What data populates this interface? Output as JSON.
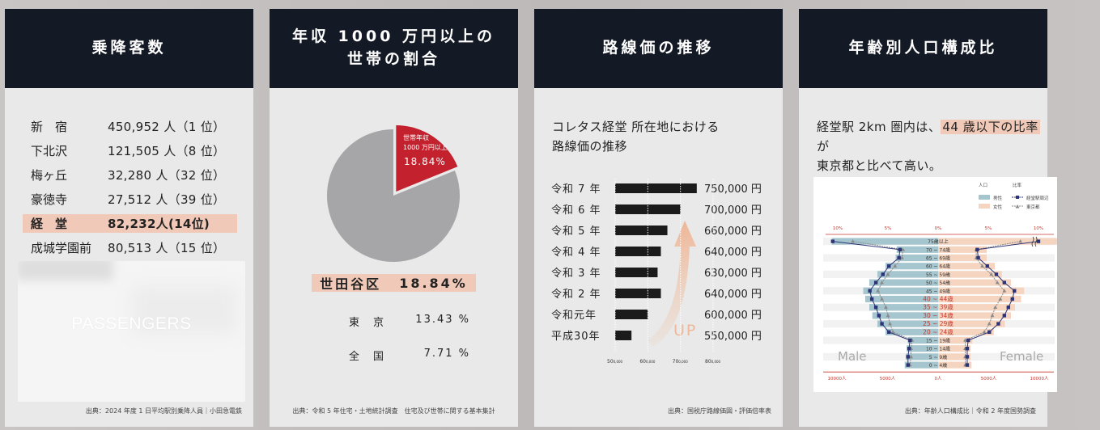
{
  "card1": {
    "title": "乗降客数",
    "rows": [
      {
        "station": "新　宿",
        "value": "450,952 人（1 位）",
        "highlight": false
      },
      {
        "station": "下北沢",
        "value": "121,505 人（8 位）",
        "highlight": false
      },
      {
        "station": "梅ヶ丘",
        "value": "32,280 人（32 位）",
        "highlight": false
      },
      {
        "station": "豪徳寺",
        "value": "27,512 人（39 位）",
        "highlight": false
      },
      {
        "station": "経　堂",
        "value": "82,232人(14位)",
        "highlight": true
      },
      {
        "station": "成城学園前",
        "value": "80,513 人（15 位）",
        "highlight": false
      }
    ],
    "photo_text": "PASSENGERS",
    "source": "出典：2024 年度 1 日平均駅別乗降人員｜小田急電鉄"
  },
  "card2": {
    "title_line1": "年収 1000 万円以上の",
    "title_line2": "世帯の割合",
    "pie_label_line1": "世帯年収",
    "pie_label_line2": "1000 万円以上",
    "pie_label_value": "18.84%",
    "highlight_area": "世田谷区",
    "highlight_value": "18.84%",
    "compare": [
      {
        "area": "東　京",
        "value": "13.43 %"
      },
      {
        "area": "全　国",
        "value": "7.71 %"
      }
    ],
    "source": "出典：令和 5 年住宅・土地統計調査　住宅及び世帯に関する基本集計",
    "colors": {
      "slice": "#c3212e",
      "rest": "#a6a5a7"
    }
  },
  "card3": {
    "title": "路線価の推移",
    "intro_line1": "コレタス経堂 所在地における",
    "intro_line2": "路線価の推移",
    "up_label": "UP",
    "source": "出典：国税庁路線価図・評価倍率表"
  },
  "card4": {
    "title": "年齢別人口構成比",
    "intro_pre": "経堂駅 2km 圏内は、",
    "intro_hl": "44 歳以下の比率",
    "intro_post": "が",
    "intro_line2": "東京都と比べて高い。",
    "source": "出典：年齢人口構成比｜令和 2 年度国勢調査"
  },
  "chart_data": [
    {
      "type": "pie",
      "title": "年収 1000 万円以上の世帯の割合",
      "slices": [
        {
          "label": "世帯年収 1000 万円以上",
          "value": 18.84
        },
        {
          "label": "",
          "value": 81.16
        }
      ]
    },
    {
      "type": "bar",
      "title": "路線価の推移",
      "categories": [
        "令和 7 年",
        "令和 6 年",
        "令和 5 年",
        "令和 4 年",
        "令和 3 年",
        "令和 2 年",
        "令和元年",
        "平成30年"
      ],
      "values": [
        750000,
        700000,
        660000,
        640000,
        630000,
        640000,
        600000,
        550000
      ],
      "value_labels": [
        "750,000 円",
        "700,000 円",
        "660,000 円",
        "640,000 円",
        "630,000 円",
        "640,000 円",
        "600,000 円",
        "550,000 円"
      ],
      "x_ticks": [
        "50",
        "60",
        "70",
        "80"
      ],
      "x_tick_unit": "0,000",
      "xlim": [
        500000,
        800000
      ],
      "color": "#1b1b1b"
    },
    {
      "type": "bar",
      "title": "年齢別人口構成比",
      "legend_titles": [
        "人口",
        "比率"
      ],
      "legend": [
        "男性",
        "女性",
        "経堂駅周辺",
        "東京都"
      ],
      "side_labels": [
        "Male",
        "Female"
      ],
      "top_ticks": [
        "10%",
        "5%",
        "0%",
        "5%",
        "10%",
        "15%"
      ],
      "bottom_ticks": [
        "10000人",
        "5000人",
        "0人",
        "5000人",
        "10000人"
      ],
      "age_groups": [
        "75歳以上",
        "70 ~ 74歳",
        "65 ~ 69歳",
        "60 ~ 64歳",
        "55 ~ 59歳",
        "50 ~ 54歳",
        "45 ~ 49歳",
        "40 ~ 44歳",
        "35 ~ 39歳",
        "30 ~ 34歳",
        "25 ~ 29歳",
        "20 ~ 24歳",
        "15 ~ 19歳",
        "10 ~ 14歳",
        "5 ~ 9歳",
        "0 ~ 4歳"
      ],
      "highlight_groups": [
        "40 ~ 44歳",
        "35 ~ 39歳",
        "30 ~ 34歳",
        "25 ~ 29歳",
        "20 ~ 24歳"
      ],
      "male_population": [
        10500,
        4100,
        4200,
        5200,
        6000,
        6800,
        7400,
        7200,
        6800,
        6500,
        6000,
        5200,
        3000,
        3100,
        3200,
        3300
      ],
      "female_population": [
        13500,
        4800,
        4800,
        5600,
        6300,
        7200,
        8500,
        8200,
        7600,
        7200,
        6600,
        5500,
        3400,
        3200,
        3200,
        3300
      ],
      "male_ratio_local": [
        -10.5,
        -3.8,
        -3.9,
        -4.9,
        -5.5,
        -6.2,
        -6.8,
        -6.6,
        -6.2,
        -5.9,
        -5.6,
        -4.9,
        -2.8,
        -2.9,
        -3.0,
        -3.0
      ],
      "female_ratio_local": [
        10.0,
        3.9,
        4.0,
        4.9,
        5.8,
        6.6,
        7.6,
        7.4,
        7.0,
        6.6,
        6.0,
        5.1,
        3.0,
        2.9,
        2.9,
        2.9
      ],
      "male_ratio_tokyo": [
        -8.5,
        -3.5,
        -3.6,
        -4.3,
        -5.0,
        -5.6,
        -6.0,
        -5.6,
        -5.2,
        -5.0,
        -4.8,
        -4.5,
        -2.6,
        -2.7,
        -2.7,
        -2.8
      ],
      "female_ratio_tokyo": [
        8.2,
        3.8,
        3.8,
        4.4,
        5.3,
        5.9,
        6.6,
        6.2,
        5.7,
        5.4,
        5.1,
        4.6,
        2.7,
        2.7,
        2.7,
        2.7
      ],
      "colors": {
        "male": "#a5c6cf",
        "female": "#f6d5c0",
        "local": "#2d3475",
        "tokyo": "#8a8a8a",
        "highlight_text": "#c6372c"
      }
    }
  ]
}
